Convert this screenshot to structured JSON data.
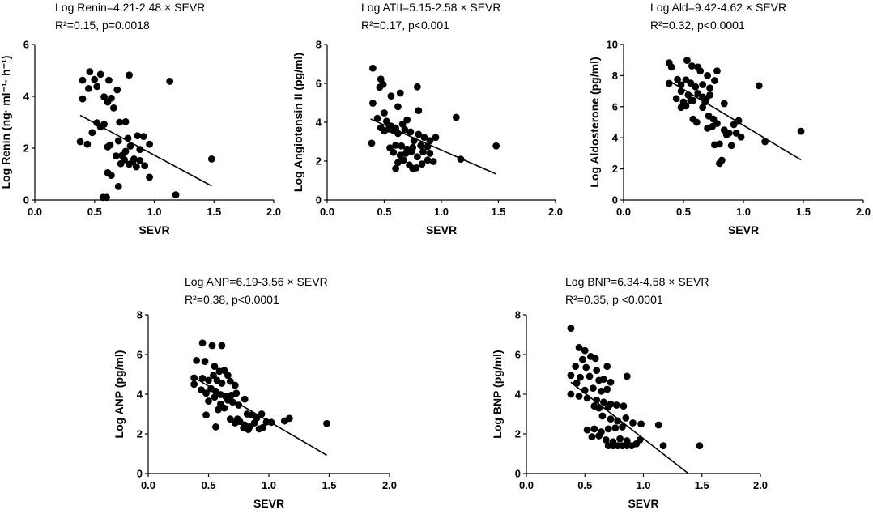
{
  "chart_data": [
    {
      "type": "scatter",
      "id": "renin",
      "equation": "Log Renin=4.21-2.48 × SEVR",
      "stats": "R²=0.15, p=0.0018",
      "xlabel": "SEVR",
      "ylabel": "Log Renin (ng· ml⁻¹· h⁻¹)",
      "xlim": [
        0,
        2
      ],
      "ylim": [
        0,
        6
      ],
      "xticks": [
        "0.0",
        "0.5",
        "1.0",
        "1.5",
        "2.0"
      ],
      "yticks": [
        "0",
        "2",
        "4",
        "6"
      ],
      "fit": {
        "intercept": 4.21,
        "slope": -2.48,
        "x_range": [
          0.38,
          1.48
        ]
      },
      "points": [
        [
          0.4,
          4.62
        ],
        [
          0.46,
          4.95
        ],
        [
          0.5,
          4.65
        ],
        [
          0.55,
          4.85
        ],
        [
          0.62,
          4.62
        ],
        [
          0.69,
          4.25
        ],
        [
          0.4,
          3.9
        ],
        [
          0.45,
          4.3
        ],
        [
          0.52,
          4.38
        ],
        [
          0.58,
          3.98
        ],
        [
          0.61,
          3.78
        ],
        [
          0.64,
          3.93
        ],
        [
          0.66,
          3.55
        ],
        [
          0.52,
          2.98
        ],
        [
          0.55,
          2.82
        ],
        [
          0.58,
          2.92
        ],
        [
          0.61,
          2.05
        ],
        [
          0.63,
          2.12
        ],
        [
          0.71,
          3.0
        ],
        [
          0.76,
          3.02
        ],
        [
          0.7,
          2.28
        ],
        [
          0.73,
          1.72
        ],
        [
          0.78,
          2.38
        ],
        [
          0.8,
          2.08
        ],
        [
          0.83,
          1.58
        ],
        [
          0.86,
          2.48
        ],
        [
          0.88,
          1.95
        ],
        [
          0.91,
          2.45
        ],
        [
          0.96,
          2.15
        ],
        [
          0.38,
          2.25
        ],
        [
          0.44,
          2.15
        ],
        [
          0.48,
          2.6
        ],
        [
          0.68,
          1.7
        ],
        [
          0.72,
          1.4
        ],
        [
          0.75,
          1.55
        ],
        [
          0.79,
          1.38
        ],
        [
          0.82,
          1.48
        ],
        [
          0.85,
          1.28
        ],
        [
          0.88,
          1.52
        ],
        [
          0.61,
          1.05
        ],
        [
          0.64,
          0.95
        ],
        [
          0.7,
          0.52
        ],
        [
          0.96,
          0.88
        ],
        [
          0.57,
          0.1
        ],
        [
          0.6,
          0.1
        ],
        [
          1.13,
          4.58
        ],
        [
          1.48,
          1.58
        ],
        [
          1.18,
          0.2
        ],
        [
          0.79,
          4.82
        ],
        [
          0.92,
          1.32
        ],
        [
          0.76,
          1.88
        ]
      ]
    },
    {
      "type": "scatter",
      "id": "atii",
      "equation": "Log ATII=5.15-2.58 × SEVR",
      "stats": "R²=0.17, p<0.001",
      "xlabel": "SEVR",
      "ylabel": "Log Angiotensin II (pg/ml)",
      "xlim": [
        0,
        2
      ],
      "ylim": [
        0,
        8
      ],
      "xticks": [
        "0.0",
        "0.5",
        "1.0",
        "1.5",
        "2.0"
      ],
      "yticks": [
        "0",
        "2",
        "4",
        "6",
        "8"
      ],
      "fit": {
        "intercept": 5.15,
        "slope": -2.58,
        "x_range": [
          0.38,
          1.48
        ]
      },
      "points": [
        [
          0.4,
          6.78
        ],
        [
          0.47,
          6.22
        ],
        [
          0.49,
          5.95
        ],
        [
          0.46,
          5.8
        ],
        [
          0.79,
          5.82
        ],
        [
          0.56,
          5.35
        ],
        [
          0.64,
          5.5
        ],
        [
          0.4,
          4.98
        ],
        [
          0.62,
          4.8
        ],
        [
          0.44,
          4.2
        ],
        [
          0.5,
          4.48
        ],
        [
          0.52,
          4.05
        ],
        [
          0.56,
          3.8
        ],
        [
          0.6,
          3.7
        ],
        [
          0.66,
          3.9
        ],
        [
          0.7,
          4.12
        ],
        [
          0.47,
          3.72
        ],
        [
          0.5,
          3.55
        ],
        [
          0.54,
          3.65
        ],
        [
          0.58,
          3.58
        ],
        [
          0.62,
          3.42
        ],
        [
          0.68,
          3.62
        ],
        [
          0.73,
          3.5
        ],
        [
          0.8,
          3.38
        ],
        [
          0.85,
          3.22
        ],
        [
          0.9,
          3.05
        ],
        [
          0.95,
          3.22
        ],
        [
          0.76,
          3.05
        ],
        [
          0.6,
          2.82
        ],
        [
          0.65,
          2.78
        ],
        [
          0.7,
          2.62
        ],
        [
          0.75,
          2.7
        ],
        [
          0.82,
          2.8
        ],
        [
          0.88,
          2.75
        ],
        [
          0.39,
          2.92
        ],
        [
          0.58,
          2.45
        ],
        [
          0.64,
          2.3
        ],
        [
          0.69,
          2.4
        ],
        [
          0.74,
          2.5
        ],
        [
          0.79,
          2.22
        ],
        [
          0.84,
          2.48
        ],
        [
          0.9,
          2.4
        ],
        [
          0.62,
          1.92
        ],
        [
          0.67,
          2.05
        ],
        [
          0.72,
          1.8
        ],
        [
          0.78,
          1.65
        ],
        [
          0.83,
          1.85
        ],
        [
          0.88,
          2.05
        ],
        [
          0.93,
          1.98
        ],
        [
          0.6,
          1.62
        ],
        [
          0.75,
          1.62
        ],
        [
          1.13,
          4.25
        ],
        [
          1.17,
          2.1
        ],
        [
          1.48,
          2.78
        ],
        [
          0.8,
          4.6
        ],
        [
          0.55,
          2.68
        ]
      ]
    },
    {
      "type": "scatter",
      "id": "ald",
      "equation": "Log Ald=9.42-4.62 × SEVR",
      "stats": "R²=0.32, p<0.0001",
      "xlabel": "SEVR",
      "ylabel": "Log Aldosterone (pg/ml)",
      "xlim": [
        0,
        2
      ],
      "ylim": [
        0,
        10
      ],
      "xticks": [
        "0.0",
        "0.5",
        "1.0",
        "1.5",
        "2.0"
      ],
      "yticks": [
        "0",
        "2",
        "4",
        "6",
        "8",
        "10"
      ],
      "fit": {
        "intercept": 9.42,
        "slope": -4.62,
        "x_range": [
          0.38,
          1.48
        ]
      },
      "points": [
        [
          0.38,
          8.82
        ],
        [
          0.4,
          8.55
        ],
        [
          0.53,
          8.98
        ],
        [
          0.57,
          8.62
        ],
        [
          0.62,
          8.55
        ],
        [
          0.64,
          8.3
        ],
        [
          0.7,
          8.0
        ],
        [
          0.78,
          8.3
        ],
        [
          0.38,
          7.5
        ],
        [
          0.45,
          7.75
        ],
        [
          0.48,
          7.4
        ],
        [
          0.52,
          7.72
        ],
        [
          0.56,
          7.52
        ],
        [
          0.6,
          7.28
        ],
        [
          0.66,
          7.42
        ],
        [
          0.72,
          7.2
        ],
        [
          0.76,
          7.68
        ],
        [
          0.48,
          7.0
        ],
        [
          0.54,
          6.75
        ],
        [
          0.58,
          6.4
        ],
        [
          0.62,
          6.85
        ],
        [
          0.66,
          6.62
        ],
        [
          0.69,
          6.52
        ],
        [
          0.72,
          6.75
        ],
        [
          0.44,
          6.52
        ],
        [
          0.5,
          6.3
        ],
        [
          0.56,
          6.4
        ],
        [
          0.68,
          6.3
        ],
        [
          0.48,
          5.95
        ],
        [
          0.52,
          6.05
        ],
        [
          0.66,
          5.95
        ],
        [
          0.71,
          5.4
        ],
        [
          0.75,
          5.2
        ],
        [
          0.58,
          5.2
        ],
        [
          0.61,
          5.0
        ],
        [
          0.7,
          4.62
        ],
        [
          0.74,
          4.72
        ],
        [
          0.78,
          4.92
        ],
        [
          0.84,
          4.5
        ],
        [
          0.88,
          4.3
        ],
        [
          0.92,
          4.85
        ],
        [
          0.96,
          5.1
        ],
        [
          0.98,
          4.05
        ],
        [
          0.86,
          4.2
        ],
        [
          0.9,
          3.5
        ],
        [
          0.76,
          3.55
        ],
        [
          0.8,
          3.6
        ],
        [
          0.8,
          2.35
        ],
        [
          0.82,
          2.55
        ],
        [
          1.13,
          7.35
        ],
        [
          1.18,
          3.75
        ],
        [
          1.48,
          4.42
        ],
        [
          0.94,
          4.3
        ],
        [
          0.84,
          6.2
        ]
      ]
    },
    {
      "type": "scatter",
      "id": "anp",
      "equation": "Log ANP=6.19-3.56 × SEVR",
      "stats": "R²=0.38, p<0.0001",
      "xlabel": "SEVR",
      "ylabel": "Log ANP (pg/ml)",
      "xlim": [
        0,
        2
      ],
      "ylim": [
        0,
        8
      ],
      "xticks": [
        "0.0",
        "0.5",
        "1.0",
        "1.5",
        "2.0"
      ],
      "yticks": [
        "0",
        "2",
        "4",
        "6",
        "8"
      ],
      "fit": {
        "intercept": 6.19,
        "slope": -3.56,
        "x_range": [
          0.38,
          1.48
        ]
      },
      "points": [
        [
          0.45,
          6.58
        ],
        [
          0.53,
          6.45
        ],
        [
          0.61,
          6.45
        ],
        [
          0.4,
          5.7
        ],
        [
          0.47,
          5.65
        ],
        [
          0.55,
          5.4
        ],
        [
          0.59,
          5.15
        ],
        [
          0.63,
          5.2
        ],
        [
          0.66,
          4.95
        ],
        [
          0.38,
          4.82
        ],
        [
          0.45,
          4.8
        ],
        [
          0.5,
          4.7
        ],
        [
          0.54,
          4.95
        ],
        [
          0.57,
          4.7
        ],
        [
          0.61,
          4.55
        ],
        [
          0.68,
          4.65
        ],
        [
          0.72,
          4.45
        ],
        [
          0.38,
          4.5
        ],
        [
          0.44,
          4.22
        ],
        [
          0.48,
          4.05
        ],
        [
          0.52,
          4.28
        ],
        [
          0.56,
          4.15
        ],
        [
          0.6,
          3.98
        ],
        [
          0.64,
          3.9
        ],
        [
          0.69,
          3.95
        ],
        [
          0.73,
          4.05
        ],
        [
          0.5,
          3.65
        ],
        [
          0.55,
          3.85
        ],
        [
          0.6,
          3.5
        ],
        [
          0.66,
          3.7
        ],
        [
          0.7,
          3.6
        ],
        [
          0.75,
          3.45
        ],
        [
          0.8,
          3.75
        ],
        [
          0.58,
          3.22
        ],
        [
          0.63,
          3.3
        ],
        [
          0.82,
          3.0
        ],
        [
          0.86,
          2.95
        ],
        [
          0.9,
          2.8
        ],
        [
          0.94,
          3.0
        ],
        [
          0.48,
          2.95
        ],
        [
          0.68,
          2.75
        ],
        [
          0.72,
          2.55
        ],
        [
          0.76,
          2.62
        ],
        [
          0.8,
          2.45
        ],
        [
          0.84,
          2.35
        ],
        [
          0.88,
          2.55
        ],
        [
          0.92,
          2.25
        ],
        [
          0.95,
          2.32
        ],
        [
          0.79,
          2.3
        ],
        [
          0.83,
          2.22
        ],
        [
          0.98,
          2.6
        ],
        [
          1.02,
          2.58
        ],
        [
          1.13,
          2.65
        ],
        [
          1.17,
          2.78
        ],
        [
          1.48,
          2.52
        ],
        [
          0.56,
          2.35
        ],
        [
          0.74,
          2.75
        ]
      ]
    },
    {
      "type": "scatter",
      "id": "bnp",
      "equation": "Log BNP=6.34-4.58 × SEVR",
      "stats": "R²=0.35, p <0.0001",
      "xlabel": "SEVR",
      "ylabel": "Log BNP (pg/ml)",
      "xlim": [
        0,
        2
      ],
      "ylim": [
        0,
        8
      ],
      "xticks": [
        "0.0",
        "0.5",
        "1.0",
        "1.5",
        "2.0"
      ],
      "yticks": [
        "0",
        "2",
        "4",
        "6",
        "8"
      ],
      "fit": {
        "intercept": 6.34,
        "slope": -4.58,
        "x_range": [
          0.38,
          1.38
        ]
      },
      "points": [
        [
          0.38,
          7.32
        ],
        [
          0.45,
          6.35
        ],
        [
          0.5,
          6.2
        ],
        [
          0.48,
          5.75
        ],
        [
          0.55,
          5.9
        ],
        [
          0.59,
          5.8
        ],
        [
          0.42,
          5.4
        ],
        [
          0.51,
          5.35
        ],
        [
          0.6,
          5.2
        ],
        [
          0.69,
          5.4
        ],
        [
          0.38,
          4.95
        ],
        [
          0.46,
          4.85
        ],
        [
          0.54,
          4.9
        ],
        [
          0.62,
          4.7
        ],
        [
          0.66,
          4.75
        ],
        [
          0.72,
          4.6
        ],
        [
          0.86,
          4.9
        ],
        [
          0.43,
          4.55
        ],
        [
          0.5,
          4.2
        ],
        [
          0.57,
          4.3
        ],
        [
          0.64,
          4.15
        ],
        [
          0.69,
          4.25
        ],
        [
          0.38,
          4.0
        ],
        [
          0.45,
          3.9
        ],
        [
          0.52,
          3.8
        ],
        [
          0.6,
          3.7
        ],
        [
          0.66,
          3.6
        ],
        [
          0.72,
          3.5
        ],
        [
          0.58,
          3.4
        ],
        [
          0.62,
          3.3
        ],
        [
          0.7,
          3.35
        ],
        [
          0.77,
          3.45
        ],
        [
          0.83,
          3.4
        ],
        [
          0.65,
          2.9
        ],
        [
          0.72,
          2.75
        ],
        [
          0.78,
          2.65
        ],
        [
          0.85,
          2.8
        ],
        [
          0.91,
          2.55
        ],
        [
          0.98,
          2.5
        ],
        [
          0.52,
          2.2
        ],
        [
          0.58,
          2.25
        ],
        [
          0.64,
          2.1
        ],
        [
          0.7,
          2.25
        ],
        [
          0.76,
          2.3
        ],
        [
          0.82,
          2.35
        ],
        [
          0.56,
          1.85
        ],
        [
          0.62,
          1.9
        ],
        [
          0.68,
          1.7
        ],
        [
          0.74,
          1.6
        ],
        [
          0.8,
          1.75
        ],
        [
          0.86,
          1.65
        ],
        [
          0.7,
          1.4
        ],
        [
          0.74,
          1.4
        ],
        [
          0.78,
          1.4
        ],
        [
          0.82,
          1.4
        ],
        [
          0.86,
          1.4
        ],
        [
          0.9,
          1.4
        ],
        [
          0.94,
          1.5
        ],
        [
          0.97,
          1.7
        ],
        [
          1.13,
          2.45
        ],
        [
          1.17,
          1.4
        ],
        [
          1.48,
          1.4
        ]
      ]
    }
  ]
}
